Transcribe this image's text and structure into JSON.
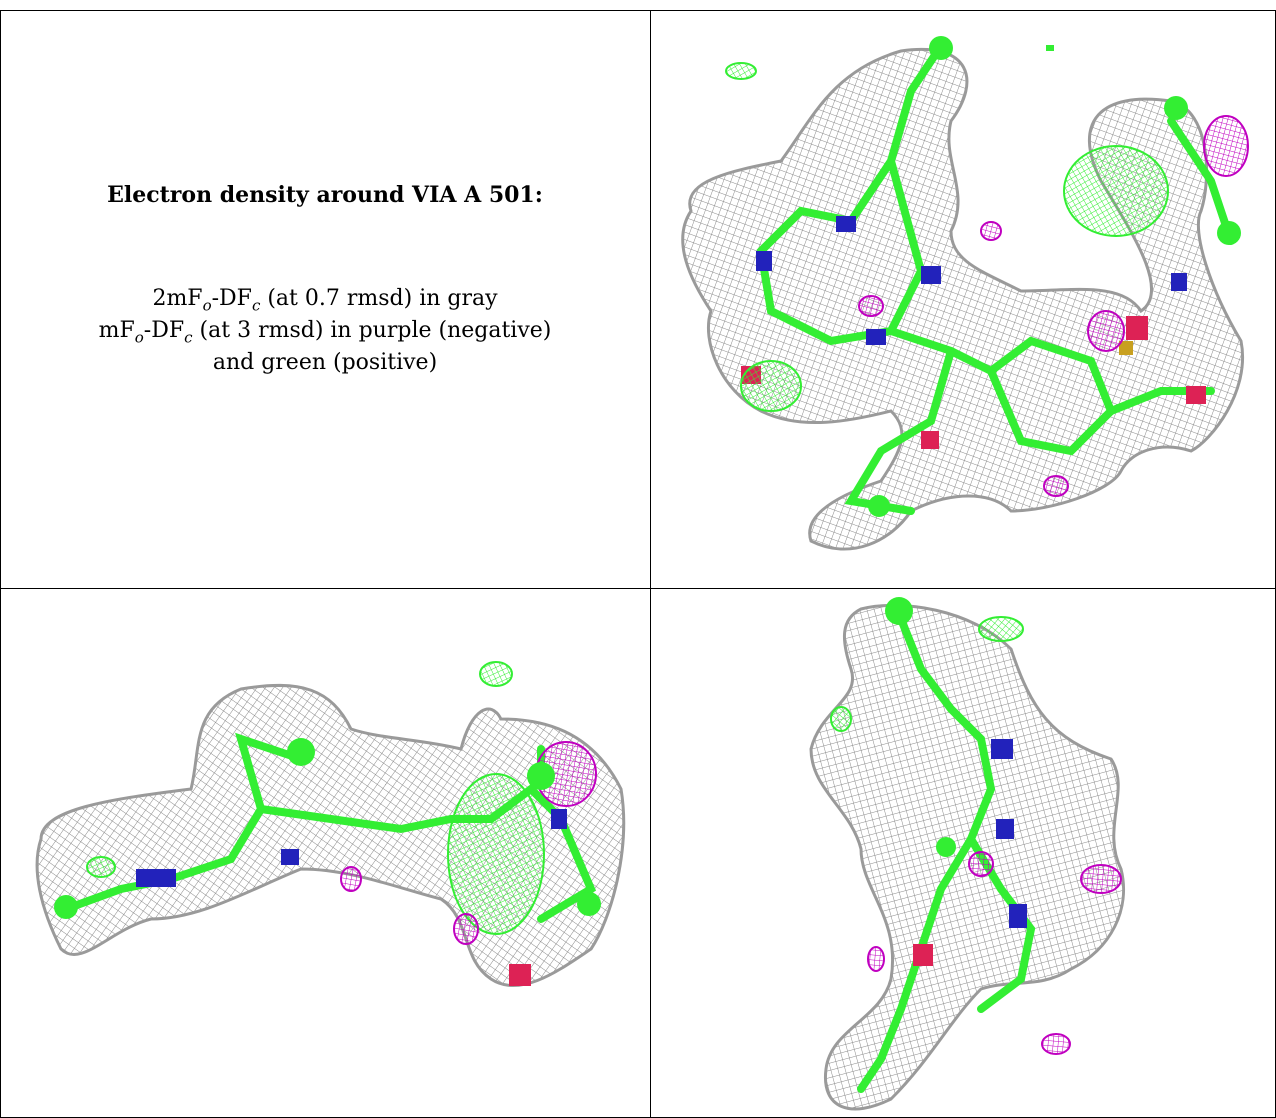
{
  "caption": {
    "title": "Electron density around VIA A 501:",
    "map1": {
      "prefix": "2mF",
      "sub_o": "o",
      "mid": "-DF",
      "sub_c": "c",
      "suffix": " (at 0.7 rmsd) in gray"
    },
    "map2": {
      "prefix": "mF",
      "sub_o": "o",
      "mid": "-DF",
      "sub_c": "c",
      "suffix": " (at 3 rmsd) in purple (negative)"
    },
    "map2_cont": "and green (positive)"
  },
  "colors": {
    "density_mesh": "#8a8a8a",
    "negative_density": "#c000c0",
    "positive_density": "#33ee33",
    "carbon": "#33ee33",
    "nitrogen": "#2222bb",
    "oxygen": "#dd2255",
    "sulfur": "#c8a020"
  },
  "panels": [
    {
      "name": "view-1"
    },
    {
      "name": "view-2"
    },
    {
      "name": "view-3"
    }
  ]
}
